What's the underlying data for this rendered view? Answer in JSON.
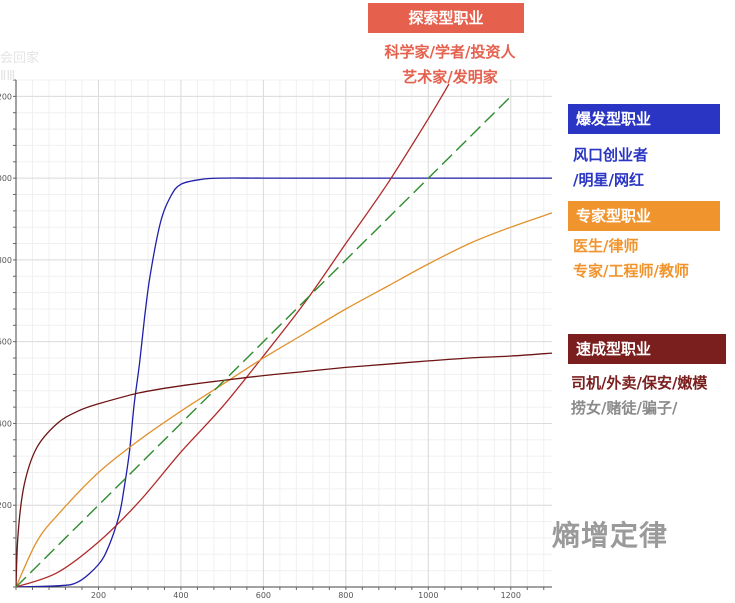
{
  "chart_data": {
    "type": "line",
    "xlim": [
      0,
      1300
    ],
    "ylim": [
      0,
      1240
    ],
    "x_ticks": [
      200,
      400,
      600,
      800,
      1000,
      1200
    ],
    "y_ticks": [
      200,
      400,
      600,
      800,
      1000,
      1200
    ],
    "grid": true,
    "series": [
      {
        "name": "爆发型职业",
        "color": "#1f1fa8",
        "x": [
          0,
          100,
          150,
          200,
          225,
          250,
          262,
          275,
          287,
          300,
          312,
          325,
          350,
          375,
          400,
          450,
          500,
          600,
          800,
          1000,
          1300
        ],
        "y": [
          0,
          3,
          12,
          55,
          100,
          175,
          240,
          330,
          450,
          550,
          660,
          760,
          890,
          955,
          985,
          997,
          1000,
          1000,
          1000,
          1000,
          1000
        ]
      },
      {
        "name": "探索型职业",
        "color": "#b02a2a",
        "x": [
          0,
          100,
          200,
          300,
          400,
          500,
          600,
          700,
          800,
          900,
          1000,
          1050
        ],
        "y": [
          0,
          35,
          110,
          210,
          330,
          440,
          565,
          695,
          840,
          985,
          1145,
          1230
        ]
      },
      {
        "name": "专家型职业",
        "color": "#e0922e",
        "x": [
          0,
          50,
          100,
          200,
          300,
          400,
          500,
          600,
          700,
          800,
          900,
          1000,
          1100,
          1200,
          1300
        ],
        "y": [
          0,
          110,
          175,
          280,
          360,
          430,
          495,
          560,
          620,
          680,
          735,
          790,
          840,
          880,
          915
        ]
      },
      {
        "name": "速成型职业",
        "color": "#6e1414",
        "x": [
          0,
          5,
          20,
          50,
          100,
          150,
          200,
          300,
          400,
          500,
          600,
          700,
          800,
          900,
          1000,
          1100,
          1200,
          1300
        ],
        "y": [
          0,
          130,
          250,
          340,
          400,
          430,
          448,
          475,
          492,
          505,
          517,
          527,
          537,
          545,
          553,
          560,
          565,
          572
        ]
      },
      {
        "name": "diagonal",
        "color": "#2e8b2e",
        "dashed": true,
        "x": [
          0,
          1200
        ],
        "y": [
          0,
          1200
        ]
      }
    ]
  },
  "banners": {
    "explore": {
      "title": "探索型职业",
      "line1": "科学家/学者/投资人",
      "line2": "艺术家/发明家",
      "color": "#e5604d"
    },
    "burst": {
      "title": "爆发型职业",
      "line1": "风口创业者",
      "line2": "/明星/网红",
      "color": "#2a35c4"
    },
    "expert": {
      "title": "专家型职业",
      "line1": "医生/律师",
      "line2": "专家/工程师/教师",
      "color": "#f0952e"
    },
    "fast": {
      "title": "速成型职业",
      "line1": "司机/外卖/保安/嫩模",
      "line2": "捞女/赌徒/骗子/",
      "color": "#7a1e1e"
    }
  },
  "ghost_text": {
    "line1": "会回家",
    "line2": "ⅡⅢ"
  },
  "watermark": "熵增定律"
}
